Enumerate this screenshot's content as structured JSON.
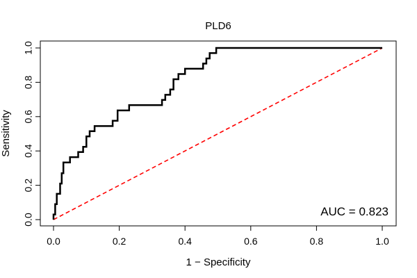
{
  "chart_data": {
    "type": "line",
    "title": "PLD6",
    "xlabel": "1 − Specificity",
    "ylabel": "Sensitivity",
    "xlim": [
      0,
      1
    ],
    "ylim": [
      0,
      1
    ],
    "x_ticks": [
      "0.0",
      "0.2",
      "0.4",
      "0.6",
      "0.8",
      "1.0"
    ],
    "y_ticks": [
      "0.0",
      "0.2",
      "0.4",
      "0.6",
      "0.8",
      "1.0"
    ],
    "annotation": "AUC = 0.823",
    "series": [
      {
        "name": "ROC curve",
        "color": "#000000",
        "points": [
          [
            0.0,
            0.0
          ],
          [
            0.0,
            0.03
          ],
          [
            0.005,
            0.03
          ],
          [
            0.005,
            0.09
          ],
          [
            0.01,
            0.09
          ],
          [
            0.01,
            0.15
          ],
          [
            0.02,
            0.15
          ],
          [
            0.02,
            0.21
          ],
          [
            0.025,
            0.21
          ],
          [
            0.025,
            0.27
          ],
          [
            0.03,
            0.27
          ],
          [
            0.03,
            0.333
          ],
          [
            0.05,
            0.333
          ],
          [
            0.05,
            0.364
          ],
          [
            0.075,
            0.364
          ],
          [
            0.075,
            0.394
          ],
          [
            0.09,
            0.394
          ],
          [
            0.09,
            0.424
          ],
          [
            0.1,
            0.424
          ],
          [
            0.1,
            0.485
          ],
          [
            0.11,
            0.485
          ],
          [
            0.11,
            0.515
          ],
          [
            0.125,
            0.515
          ],
          [
            0.125,
            0.545
          ],
          [
            0.18,
            0.545
          ],
          [
            0.18,
            0.576
          ],
          [
            0.195,
            0.576
          ],
          [
            0.195,
            0.636
          ],
          [
            0.23,
            0.636
          ],
          [
            0.23,
            0.667
          ],
          [
            0.33,
            0.667
          ],
          [
            0.33,
            0.697
          ],
          [
            0.34,
            0.697
          ],
          [
            0.34,
            0.727
          ],
          [
            0.355,
            0.727
          ],
          [
            0.355,
            0.758
          ],
          [
            0.365,
            0.758
          ],
          [
            0.365,
            0.818
          ],
          [
            0.38,
            0.818
          ],
          [
            0.38,
            0.848
          ],
          [
            0.4,
            0.848
          ],
          [
            0.4,
            0.879
          ],
          [
            0.455,
            0.879
          ],
          [
            0.455,
            0.909
          ],
          [
            0.465,
            0.909
          ],
          [
            0.465,
            0.939
          ],
          [
            0.475,
            0.939
          ],
          [
            0.475,
            0.97
          ],
          [
            0.495,
            0.97
          ],
          [
            0.495,
            1.0
          ],
          [
            1.0,
            1.0
          ]
        ]
      },
      {
        "name": "Chance line",
        "color": "#ff0000",
        "dashed": true,
        "points": [
          [
            0,
            0
          ],
          [
            1,
            1
          ]
        ]
      }
    ]
  }
}
